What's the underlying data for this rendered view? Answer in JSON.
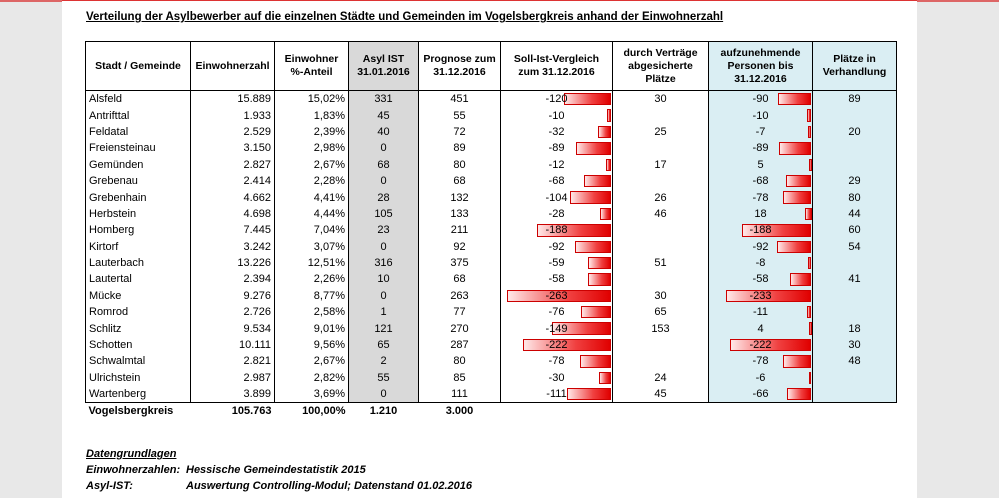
{
  "title": "Verteilung der Asylbewerber auf die einzelnen Städte und Gemeinden im Vogelsbergkreis anhand der Einwohnerzahl",
  "headers": [
    "Stadt / Gemeinde",
    "Einwohnerzahl",
    "Einwohner %-Anteil",
    "Asyl IST 31.01.2016",
    "Prognose zum 31.12.2016",
    "Soll-Ist-Vergleich zum 31.12.2016",
    "durch Verträge abgesicherte Plätze",
    "aufzunehmende Personen bis 31.12.2016",
    "Plätze in Verhandlung"
  ],
  "rows": [
    {
      "name": "Alsfeld",
      "einw": "15.889",
      "pct": "15,02%",
      "ist": "331",
      "prog": "451",
      "soll": "-120",
      "soll_n": -120,
      "vert": "30",
      "aufz": "-90",
      "aufz_n": -90,
      "verh": "89"
    },
    {
      "name": "Antrifttal",
      "einw": "1.933",
      "pct": "1,83%",
      "ist": "45",
      "prog": "55",
      "soll": "-10",
      "soll_n": -10,
      "vert": "",
      "aufz": "-10",
      "aufz_n": -10,
      "verh": ""
    },
    {
      "name": "Feldatal",
      "einw": "2.529",
      "pct": "2,39%",
      "ist": "40",
      "prog": "72",
      "soll": "-32",
      "soll_n": -32,
      "vert": "25",
      "aufz": "-7",
      "aufz_n": -7,
      "verh": "20"
    },
    {
      "name": "Freiensteinau",
      "einw": "3.150",
      "pct": "2,98%",
      "ist": "0",
      "prog": "89",
      "soll": "-89",
      "soll_n": -89,
      "vert": "",
      "aufz": "-89",
      "aufz_n": -89,
      "verh": ""
    },
    {
      "name": "Gemünden",
      "einw": "2.827",
      "pct": "2,67%",
      "ist": "68",
      "prog": "80",
      "soll": "-12",
      "soll_n": -12,
      "vert": "17",
      "aufz": "5",
      "aufz_n": 5,
      "verh": ""
    },
    {
      "name": "Grebenau",
      "einw": "2.414",
      "pct": "2,28%",
      "ist": "0",
      "prog": "68",
      "soll": "-68",
      "soll_n": -68,
      "vert": "",
      "aufz": "-68",
      "aufz_n": -68,
      "verh": "29"
    },
    {
      "name": "Grebenhain",
      "einw": "4.662",
      "pct": "4,41%",
      "ist": "28",
      "prog": "132",
      "soll": "-104",
      "soll_n": -104,
      "vert": "26",
      "aufz": "-78",
      "aufz_n": -78,
      "verh": "80"
    },
    {
      "name": "Herbstein",
      "einw": "4.698",
      "pct": "4,44%",
      "ist": "105",
      "prog": "133",
      "soll": "-28",
      "soll_n": -28,
      "vert": "46",
      "aufz": "18",
      "aufz_n": 18,
      "verh": "44"
    },
    {
      "name": "Homberg",
      "einw": "7.445",
      "pct": "7,04%",
      "ist": "23",
      "prog": "211",
      "soll": "-188",
      "soll_n": -188,
      "vert": "",
      "aufz": "-188",
      "aufz_n": -188,
      "verh": "60"
    },
    {
      "name": "Kirtorf",
      "einw": "3.242",
      "pct": "3,07%",
      "ist": "0",
      "prog": "92",
      "soll": "-92",
      "soll_n": -92,
      "vert": "",
      "aufz": "-92",
      "aufz_n": -92,
      "verh": "54"
    },
    {
      "name": "Lauterbach",
      "einw": "13.226",
      "pct": "12,51%",
      "ist": "316",
      "prog": "375",
      "soll": "-59",
      "soll_n": -59,
      "vert": "51",
      "aufz": "-8",
      "aufz_n": -8,
      "verh": ""
    },
    {
      "name": "Lautertal",
      "einw": "2.394",
      "pct": "2,26%",
      "ist": "10",
      "prog": "68",
      "soll": "-58",
      "soll_n": -58,
      "vert": "",
      "aufz": "-58",
      "aufz_n": -58,
      "verh": "41"
    },
    {
      "name": "Mücke",
      "einw": "9.276",
      "pct": "8,77%",
      "ist": "0",
      "prog": "263",
      "soll": "-263",
      "soll_n": -263,
      "vert": "30",
      "aufz": "-233",
      "aufz_n": -233,
      "verh": ""
    },
    {
      "name": "Romrod",
      "einw": "2.726",
      "pct": "2,58%",
      "ist": "1",
      "prog": "77",
      "soll": "-76",
      "soll_n": -76,
      "vert": "65",
      "aufz": "-11",
      "aufz_n": -11,
      "verh": ""
    },
    {
      "name": "Schlitz",
      "einw": "9.534",
      "pct": "9,01%",
      "ist": "121",
      "prog": "270",
      "soll": "-149",
      "soll_n": -149,
      "vert": "153",
      "aufz": "4",
      "aufz_n": 4,
      "verh": "18"
    },
    {
      "name": "Schotten",
      "einw": "10.111",
      "pct": "9,56%",
      "ist": "65",
      "prog": "287",
      "soll": "-222",
      "soll_n": -222,
      "vert": "",
      "aufz": "-222",
      "aufz_n": -222,
      "verh": "30"
    },
    {
      "name": "Schwalmtal",
      "einw": "2.821",
      "pct": "2,67%",
      "ist": "2",
      "prog": "80",
      "soll": "-78",
      "soll_n": -78,
      "vert": "",
      "aufz": "-78",
      "aufz_n": -78,
      "verh": "48"
    },
    {
      "name": "Ulrichstein",
      "einw": "2.987",
      "pct": "2,82%",
      "ist": "55",
      "prog": "85",
      "soll": "-30",
      "soll_n": -30,
      "vert": "24",
      "aufz": "-6",
      "aufz_n": -6,
      "verh": ""
    },
    {
      "name": "Wartenberg",
      "einw": "3.899",
      "pct": "3,69%",
      "ist": "0",
      "prog": "111",
      "soll": "-111",
      "soll_n": -111,
      "vert": "45",
      "aufz": "-66",
      "aufz_n": -66,
      "verh": ""
    }
  ],
  "total": {
    "name": "Vogelsbergkreis",
    "einw": "105.763",
    "pct": "100,00%",
    "ist": "1.210",
    "prog": "3.000"
  },
  "notes": {
    "heading": "Datengrundlagen",
    "items": [
      {
        "k": "Einwohnerzahlen:",
        "v": "Hessische Gemeindestatistik 2015"
      },
      {
        "k": "Asyl-IST:",
        "v": "Auswertung Controlling-Modul; Datenstand 01.02.2016"
      }
    ]
  },
  "bar_max": 263
}
